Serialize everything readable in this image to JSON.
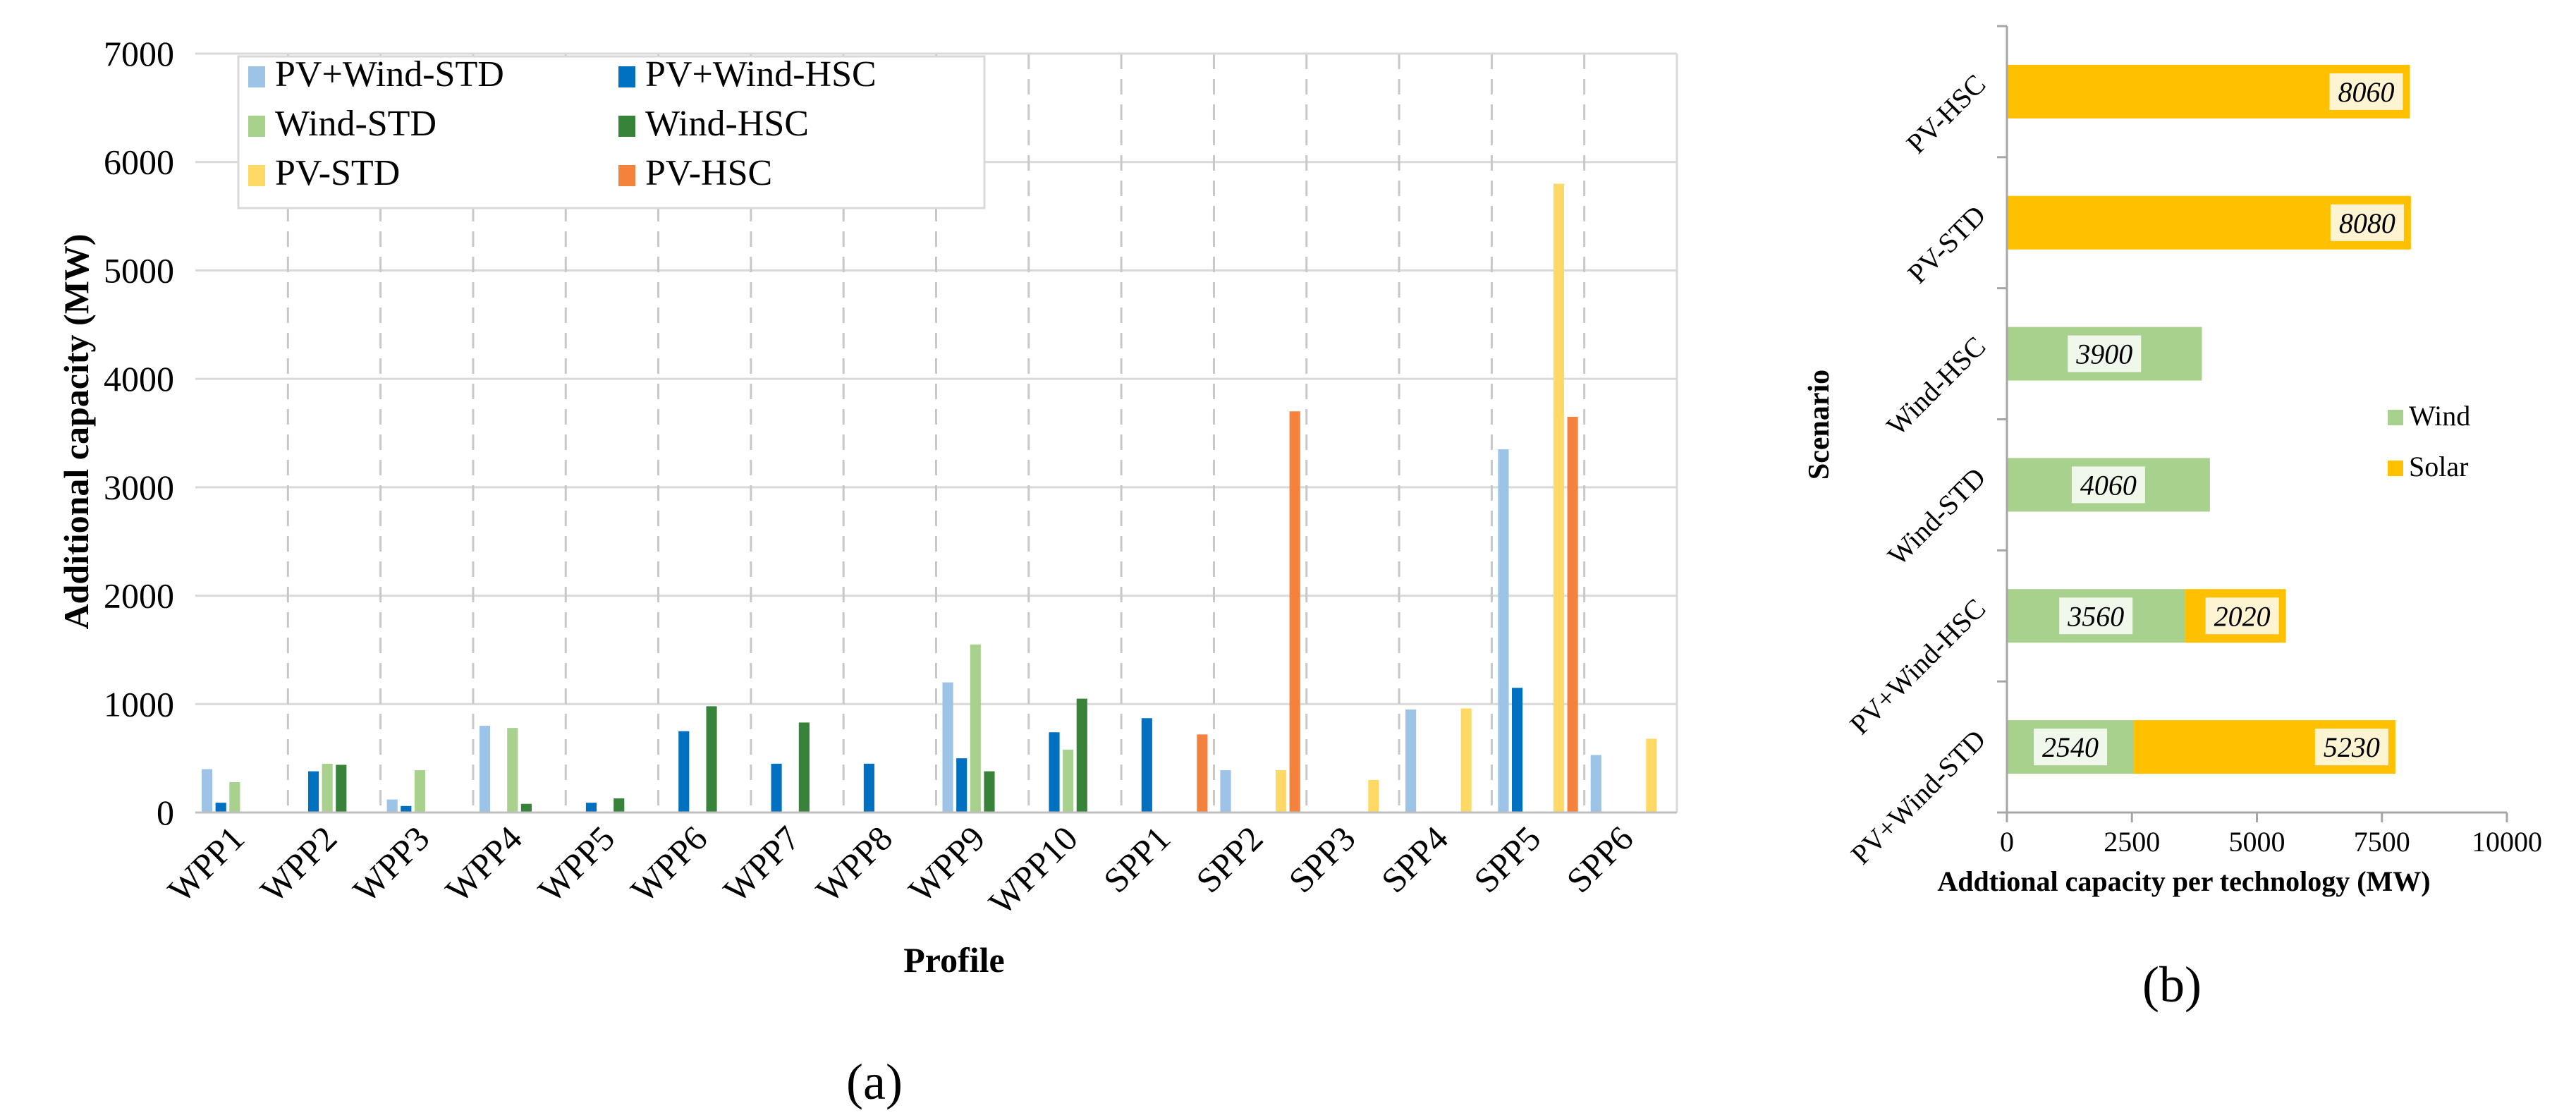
{
  "chart_data": [
    {
      "id": "a",
      "type": "bar",
      "panel_label": "(a)",
      "xlabel": "Profile",
      "ylabel": "Additional capacity (MW)",
      "ylim": [
        0,
        7000
      ],
      "yticks": [
        0,
        1000,
        2000,
        3000,
        4000,
        5000,
        6000,
        7000
      ],
      "categories": [
        "WPP1",
        "WPP2",
        "WPP3",
        "WPP4",
        "WPP5",
        "WPP6",
        "WPP7",
        "WPP8",
        "WPP9",
        "WPP10",
        "SPP1",
        "SPP2",
        "SPP3",
        "SPP4",
        "SPP5",
        "SPP6"
      ],
      "series": [
        {
          "name": "PV+Wind-STD",
          "color": "#9DC3E6",
          "values": [
            400,
            0,
            120,
            800,
            0,
            0,
            0,
            0,
            1200,
            0,
            0,
            390,
            0,
            950,
            3350,
            530
          ]
        },
        {
          "name": "PV+Wind-HSC",
          "color": "#0070C0",
          "values": [
            90,
            380,
            60,
            0,
            90,
            750,
            450,
            450,
            500,
            740,
            870,
            0,
            0,
            0,
            1150,
            0
          ]
        },
        {
          "name": "Wind-STD",
          "color": "#A9D18E",
          "values": [
            280,
            450,
            390,
            780,
            0,
            0,
            0,
            0,
            1550,
            580,
            0,
            0,
            0,
            0,
            0,
            0
          ]
        },
        {
          "name": "Wind-HSC",
          "color": "#38833A",
          "values": [
            0,
            440,
            0,
            80,
            130,
            980,
            830,
            0,
            380,
            1050,
            0,
            0,
            0,
            0,
            0,
            0
          ]
        },
        {
          "name": "PV-STD",
          "color": "#FFD966",
          "values": [
            0,
            0,
            0,
            0,
            0,
            0,
            0,
            0,
            0,
            0,
            0,
            390,
            300,
            960,
            5800,
            680
          ]
        },
        {
          "name": "PV-HSC",
          "color": "#F4813C",
          "values": [
            0,
            0,
            0,
            0,
            0,
            0,
            0,
            0,
            0,
            0,
            720,
            3700,
            0,
            0,
            3650,
            0
          ]
        }
      ],
      "legend_order": [
        "PV+Wind-STD",
        "PV+Wind-HSC",
        "Wind-STD",
        "Wind-HSC",
        "PV-STD",
        "PV-HSC"
      ],
      "legend_location": "top-left",
      "grid": true
    },
    {
      "id": "b",
      "type": "bar",
      "orientation": "horizontal",
      "stacked": true,
      "panel_label": "(b)",
      "xlabel": "Addtional capacity per technology (MW)",
      "ylabel": "Scenario",
      "xlim": [
        0,
        10000
      ],
      "xticks": [
        0,
        2500,
        5000,
        7500,
        10000
      ],
      "categories": [
        "PV-HSC",
        "PV-STD",
        "Wind-HSC",
        "Wind-STD",
        "PV+Wind-HSC",
        "PV+Wind-STD"
      ],
      "series": [
        {
          "name": "Wind",
          "color": "#A9D18E",
          "values": [
            0,
            0,
            3900,
            4060,
            3560,
            2540
          ]
        },
        {
          "name": "Solar",
          "color": "#FFC000",
          "values": [
            8060,
            8080,
            0,
            0,
            2020,
            5230
          ]
        }
      ],
      "data_labels": [
        [
          "",
          "8060"
        ],
        [
          "",
          "8080"
        ],
        [
          "3900",
          ""
        ],
        [
          "4060",
          ""
        ],
        [
          "3560",
          "2020"
        ],
        [
          "2540",
          "5230"
        ]
      ],
      "legend_location": "right",
      "grid": false
    }
  ]
}
